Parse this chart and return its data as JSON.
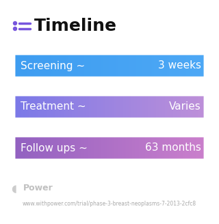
{
  "title": "Timeline",
  "background_color": "#ffffff",
  "rows": [
    {
      "label_left": "Screening ~",
      "label_right": "3 weeks",
      "gradient_start": "#3d9cf0",
      "gradient_end": "#4da8f5"
    },
    {
      "label_left": "Treatment ~",
      "label_right": "Varies",
      "gradient_start": "#7878e8",
      "gradient_end": "#c090d8"
    },
    {
      "label_left": "Follow ups ~",
      "label_right": "63 months",
      "gradient_start": "#9060c0",
      "gradient_end": "#cc80cc"
    }
  ],
  "footer_logo_text": "Power",
  "footer_url": "www.withpower.com/trial/phase-3-breast-neoplasms-7-2013-2cfc8",
  "text_color": "#ffffff",
  "title_color": "#111111",
  "title_fontsize": 18,
  "label_fontsize": 11,
  "footer_color": "#aaaaaa",
  "footer_fontsize": 5.5,
  "icon_color": "#7755dd"
}
